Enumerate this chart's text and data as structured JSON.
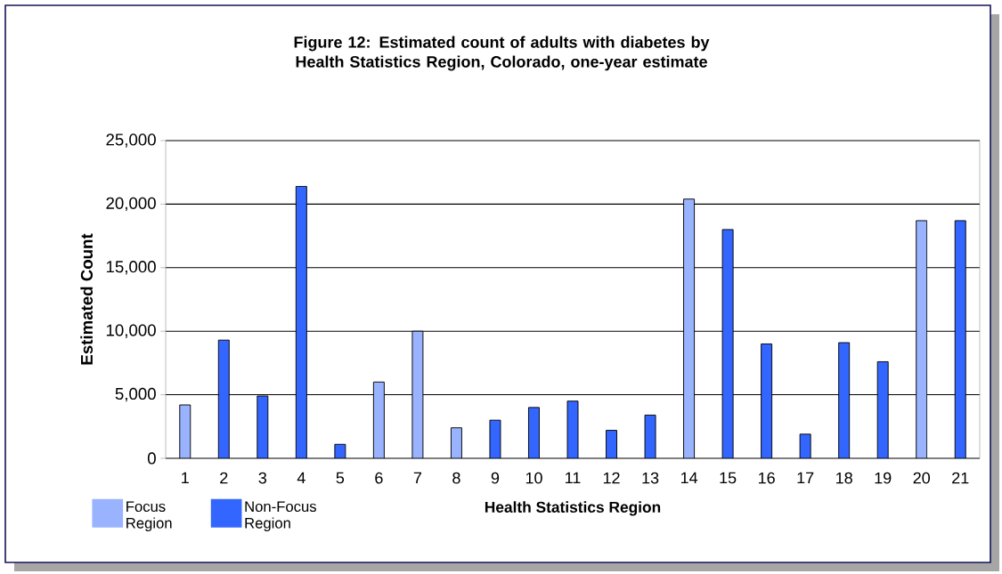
{
  "chart_data": {
    "type": "bar",
    "title": "Figure 12:  Estimated count of adults with diabetes by Health Statistics Region, Colorado, one-year estimate",
    "xlabel": "Health Statistics Region",
    "ylabel": "Estimated Count",
    "categories": [
      "1",
      "2",
      "3",
      "4",
      "5",
      "6",
      "7",
      "8",
      "9",
      "10",
      "11",
      "12",
      "13",
      "14",
      "15",
      "16",
      "17",
      "18",
      "19",
      "20",
      "21"
    ],
    "series": [
      {
        "name": "Focus Region",
        "color": "#99b3ff",
        "values": [
          4200,
          null,
          null,
          null,
          null,
          6000,
          10000,
          2400,
          null,
          null,
          null,
          null,
          null,
          20400,
          null,
          null,
          null,
          null,
          null,
          18700,
          null
        ]
      },
      {
        "name": "Non-Focus Region",
        "color": "#3366ff",
        "values": [
          null,
          9300,
          4900,
          21400,
          1100,
          null,
          null,
          null,
          3000,
          4000,
          4500,
          2200,
          3400,
          null,
          18000,
          9000,
          1900,
          9100,
          7600,
          null,
          18700
        ]
      }
    ],
    "ylim": [
      0,
      25000
    ],
    "yticks": [
      {
        "value": 0,
        "label": "0"
      },
      {
        "value": 5000,
        "label": "5,000"
      },
      {
        "value": 10000,
        "label": "10,000"
      },
      {
        "value": 15000,
        "label": "15,000"
      },
      {
        "value": 20000,
        "label": "20,000"
      },
      {
        "value": 25000,
        "label": "25,000"
      }
    ],
    "grid": "y",
    "legend": "bottom left"
  }
}
